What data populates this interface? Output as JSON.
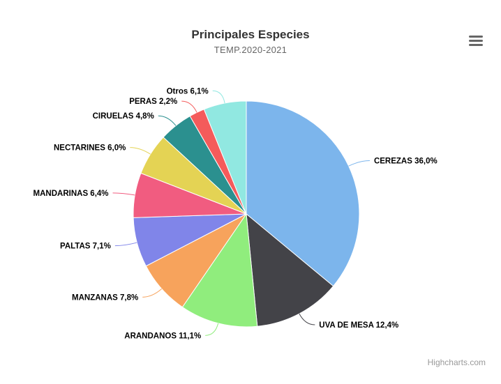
{
  "chart_data": {
    "type": "pie",
    "title": "Principales Especies",
    "subtitle": "TEMP.2020-2021",
    "legend": "none",
    "slices": [
      {
        "name": "CEREZAS",
        "value": 36.0,
        "label": "CEREZAS 36,0%",
        "color": "#7cb5ec"
      },
      {
        "name": "UVA DE MESA",
        "value": 12.4,
        "label": "UVA DE MESA 12,4%",
        "color": "#434348"
      },
      {
        "name": "ARANDANOS",
        "value": 11.1,
        "label": "ARANDANOS 11,1%",
        "color": "#90ed7d"
      },
      {
        "name": "MANZANAS",
        "value": 7.8,
        "label": "MANZANAS 7,8%",
        "color": "#f7a35c"
      },
      {
        "name": "PALTAS",
        "value": 7.1,
        "label": "PALTAS 7,1%",
        "color": "#8085e9"
      },
      {
        "name": "MANDARINAS",
        "value": 6.4,
        "label": "MANDARINAS 6,4%",
        "color": "#f15c80"
      },
      {
        "name": "NECTARINES",
        "value": 6.0,
        "label": "NECTARINES 6,0%",
        "color": "#e4d354"
      },
      {
        "name": "CIRUELAS",
        "value": 4.8,
        "label": "CIRUELAS 4,8%",
        "color": "#2b908f"
      },
      {
        "name": "PERAS",
        "value": 2.2,
        "label": "PERAS 2,2%",
        "color": "#f45b5b"
      },
      {
        "name": "Otros",
        "value": 6.1,
        "label": "Otros 6,1%",
        "color": "#91e8e1"
      }
    ]
  },
  "credits": "Highcharts.com",
  "menu": {
    "icon": "hamburger-menu-icon"
  }
}
